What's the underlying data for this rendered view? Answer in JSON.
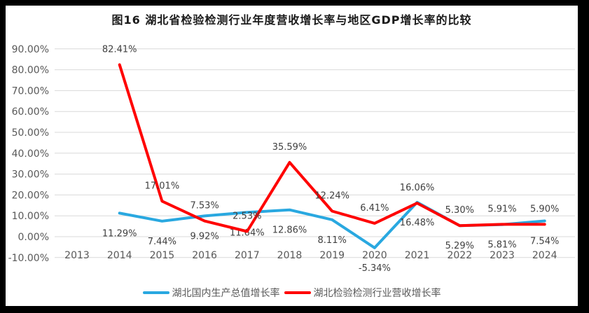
{
  "frame": {
    "border_color": "#000000",
    "chart_background": "#ffffff"
  },
  "chart_data": {
    "type": "line",
    "title": "图16  湖北省检验检测行业年度营收增长率与地区GDP增长率的比较",
    "categories": [
      "2013",
      "2014",
      "2015",
      "2016",
      "2017",
      "2018",
      "2019",
      "2020",
      "2021",
      "2022",
      "2023",
      "2024"
    ],
    "xlabel": "",
    "ylabel": "",
    "y_axis": {
      "min": -10,
      "max": 90,
      "step": 10,
      "tick_labels": [
        "90.00%",
        "80.00%",
        "70.00%",
        "60.00%",
        "50.00%",
        "40.00%",
        "30.00%",
        "20.00%",
        "10.00%",
        "0.00%",
        "-10.00%"
      ]
    },
    "grid": true,
    "gridline_color": "#d9d9d9",
    "legend_position": "bottom",
    "series": [
      {
        "name": "湖北国内生产总值增长率",
        "color": "#29A8E0",
        "label_position": "below",
        "values": [
          null,
          11.29,
          7.44,
          9.92,
          11.64,
          12.86,
          8.11,
          -5.34,
          16.48,
          5.29,
          5.81,
          7.54
        ],
        "labels": [
          null,
          "11.29%",
          "7.44%",
          "9.92%",
          "11.64%",
          "12.86%",
          "8.11%",
          "-5.34%",
          "16.48%",
          "5.29%",
          "5.81%",
          "7.54%"
        ]
      },
      {
        "name": "湖北检验检测行业营收增长率",
        "color": "#FF0000",
        "label_position": "above",
        "values": [
          null,
          82.41,
          17.01,
          7.53,
          2.53,
          35.59,
          12.24,
          6.41,
          16.06,
          5.3,
          5.91,
          5.9
        ],
        "labels": [
          null,
          "82.41%",
          "17.01%",
          "7.53%",
          "2.53%",
          "35.59%",
          "12.24%",
          "6.41%",
          "16.06%",
          "5.30%",
          "5.91%",
          "5.90%"
        ]
      }
    ]
  }
}
